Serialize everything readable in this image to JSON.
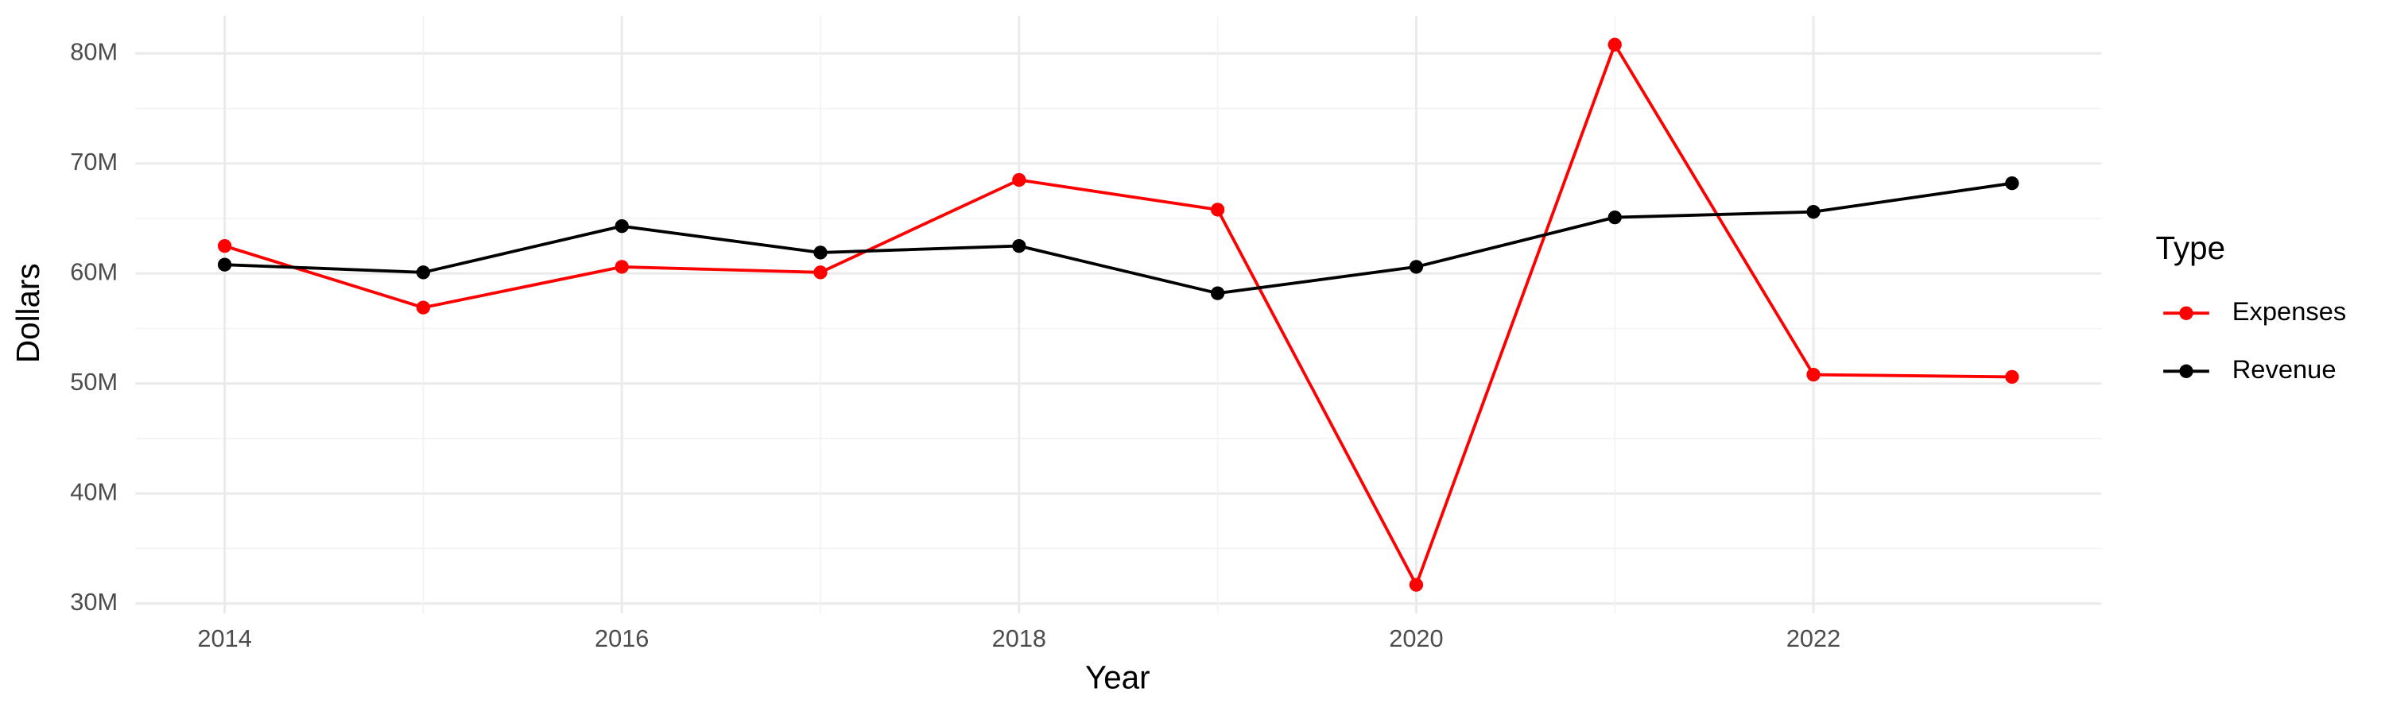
{
  "chart_data": {
    "type": "line",
    "x_label": "Year",
    "y_label": "Dollars",
    "legend_title": "Type",
    "x": [
      2014,
      2015,
      2016,
      2017,
      2018,
      2019,
      2020,
      2021,
      2022,
      2023
    ],
    "series": [
      {
        "name": "Expenses",
        "color": "#ff0000",
        "values": [
          62500000,
          56900000,
          60600000,
          60100000,
          68500000,
          65800000,
          31700000,
          80800000,
          50800000,
          50600000
        ]
      },
      {
        "name": "Revenue",
        "color": "#000000",
        "values": [
          60800000,
          60100000,
          64300000,
          61900000,
          62500000,
          58200000,
          60600000,
          65100000,
          65600000,
          68200000
        ]
      }
    ],
    "xlim": [
      2013.55,
      2023.45
    ],
    "xticks": [
      2014,
      2016,
      2018,
      2020,
      2022
    ],
    "ylim": [
      29100000,
      83400000
    ],
    "yticks": [
      {
        "value": 30000000,
        "label": "30M"
      },
      {
        "value": 40000000,
        "label": "40M"
      },
      {
        "value": 50000000,
        "label": "50M"
      },
      {
        "value": 60000000,
        "label": "60M"
      },
      {
        "value": 70000000,
        "label": "70M"
      },
      {
        "value": 80000000,
        "label": "80M"
      }
    ],
    "grid": true,
    "legend": "right"
  }
}
